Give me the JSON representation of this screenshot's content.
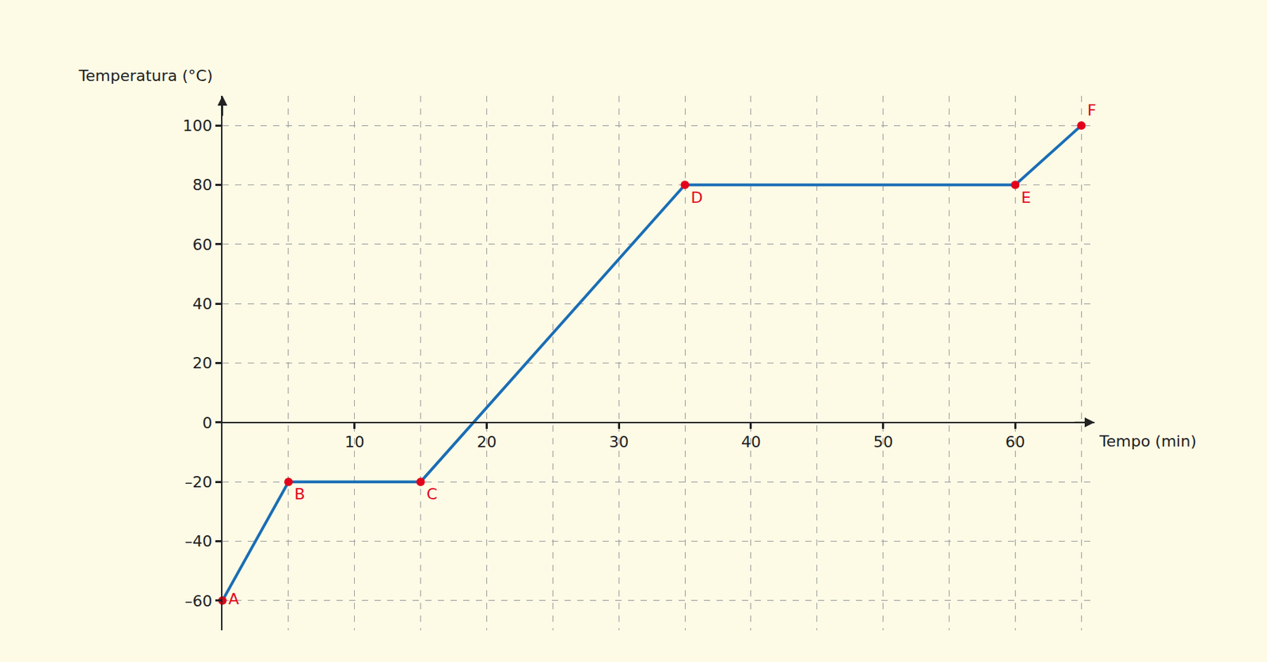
{
  "chart_data": {
    "type": "line",
    "x": [
      0,
      5,
      15,
      35,
      60,
      65
    ],
    "values": [
      -60,
      -20,
      -20,
      80,
      80,
      100
    ],
    "point_labels": [
      "A",
      "B",
      "C",
      "D",
      "E",
      "F"
    ],
    "x_label": "Tempo (min)",
    "y_label": "Temperatura (°C)",
    "color": "#1a6db5",
    "marker": "circle",
    "line_style": "solid",
    "xlim": [
      0,
      66
    ],
    "xticks": [
      10,
      20,
      30,
      40,
      50,
      60
    ],
    "ylim": [
      -70,
      110
    ],
    "yticks": [
      {
        "value": -60,
        "label": "–60"
      },
      {
        "value": -40,
        "label": "–40"
      },
      {
        "value": -20,
        "label": "–20"
      },
      0,
      20,
      40,
      60,
      80,
      100
    ],
    "grid": true
  }
}
